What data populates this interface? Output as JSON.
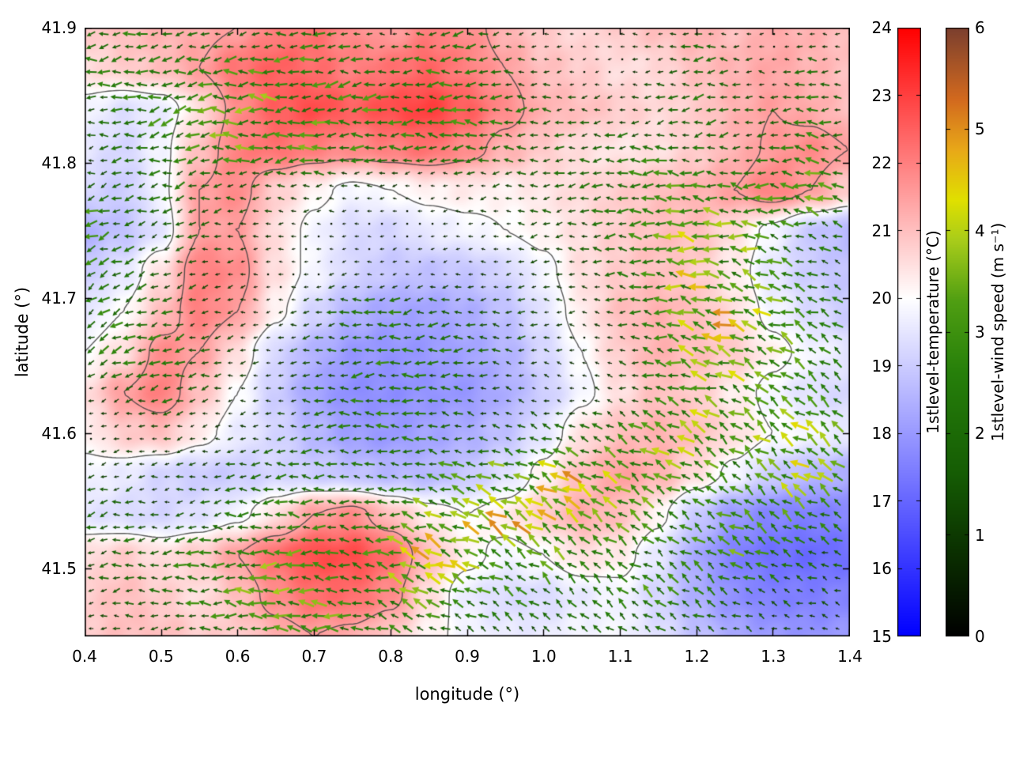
{
  "figure": {
    "background": "#ffffff"
  },
  "chart_data": {
    "type": "heatmap",
    "overlays": [
      "quiver",
      "contour"
    ],
    "title": "",
    "xlabel": "longitude (°)",
    "ylabel": "latitude (°)",
    "xlim": [
      0.4,
      1.4
    ],
    "ylim": [
      41.45,
      41.9
    ],
    "x_ticks": {
      "values": [
        0.4,
        0.5,
        0.6,
        0.7,
        0.8,
        0.9,
        1.0,
        1.1,
        1.2,
        1.3,
        1.4
      ],
      "labels": [
        "0.4",
        "0.5",
        "0.6",
        "0.7",
        "0.8",
        "0.9",
        "1.0",
        "1.1",
        "1.2",
        "1.3",
        "1.4"
      ]
    },
    "y_ticks": {
      "values": [
        41.5,
        41.6,
        41.7,
        41.8,
        41.9
      ],
      "labels": [
        "41.5",
        "41.6",
        "41.7",
        "41.8",
        "41.9"
      ]
    },
    "grid": false,
    "contour_levels": [
      20,
      21.5
    ],
    "contour_color": "#3f3f3f",
    "temperature": {
      "label": "1stlevel-temperature (°C)",
      "range": [
        15,
        24
      ],
      "ticks": [
        15,
        16,
        17,
        18,
        19,
        20,
        21,
        22,
        23,
        24
      ],
      "tick_labels_top_to_bottom": [
        "24",
        "23",
        "22",
        "21",
        "20",
        "19",
        "18",
        "17",
        "16",
        "15"
      ],
      "colormap": [
        {
          "v": 15,
          "c": "#0000ff"
        },
        {
          "v": 20,
          "c": "#ffffff"
        },
        {
          "v": 24,
          "c": "#ff0000"
        }
      ],
      "grid_lon": {
        "start": 0.4,
        "step": 0.05,
        "n": 21
      },
      "grid_lat": {
        "start": 41.9,
        "step": -0.03,
        "n": 16
      },
      "values": [
        [
          20.8,
          21.0,
          21.2,
          21.3,
          21.5,
          22.0,
          22.2,
          21.8,
          21.5,
          22.0,
          21.8,
          21.2,
          20.8,
          20.6,
          20.8,
          21.0,
          21.2,
          21.0,
          21.3,
          21.2,
          21.0
        ],
        [
          20.5,
          20.8,
          21.0,
          21.5,
          22.2,
          22.5,
          22.3,
          22.0,
          22.2,
          22.4,
          22.0,
          21.5,
          21.0,
          20.8,
          20.5,
          20.6,
          21.0,
          21.2,
          21.4,
          21.2,
          21.0
        ],
        [
          19.8,
          19.4,
          19.6,
          20.5,
          21.8,
          22.5,
          22.8,
          22.5,
          22.8,
          23.0,
          22.5,
          21.8,
          21.2,
          21.0,
          20.8,
          20.6,
          20.8,
          21.2,
          21.5,
          21.3,
          21.0
        ],
        [
          19.5,
          19.2,
          19.8,
          21.0,
          22.0,
          22.2,
          22.0,
          21.8,
          22.0,
          22.2,
          21.8,
          21.2,
          20.8,
          20.5,
          20.4,
          20.5,
          20.8,
          21.2,
          21.6,
          21.8,
          21.5
        ],
        [
          19.2,
          19.0,
          19.8,
          21.5,
          21.8,
          20.8,
          20.2,
          19.8,
          20.0,
          20.2,
          20.3,
          20.2,
          20.4,
          20.6,
          20.8,
          21.0,
          21.2,
          21.5,
          22.0,
          21.5,
          20.8
        ],
        [
          18.5,
          18.8,
          19.5,
          21.5,
          21.5,
          20.5,
          19.8,
          19.3,
          19.2,
          19.6,
          19.8,
          20.0,
          20.2,
          20.5,
          20.8,
          21.0,
          21.0,
          20.5,
          19.8,
          18.9,
          18.6
        ],
        [
          19.0,
          19.5,
          20.5,
          22.0,
          21.8,
          20.5,
          19.8,
          19.2,
          18.9,
          18.8,
          18.9,
          19.2,
          19.8,
          20.5,
          20.8,
          21.0,
          20.8,
          20.3,
          19.5,
          19.0,
          18.8
        ],
        [
          19.5,
          20.0,
          21.0,
          22.0,
          21.5,
          20.2,
          19.2,
          18.5,
          18.2,
          18.2,
          18.4,
          18.8,
          19.5,
          20.3,
          21.0,
          21.2,
          21.0,
          20.5,
          19.8,
          19.3,
          19.0
        ],
        [
          20.0,
          20.5,
          21.8,
          21.5,
          20.5,
          19.2,
          18.5,
          18.0,
          17.9,
          18.0,
          18.2,
          18.5,
          19.2,
          20.0,
          20.8,
          21.2,
          21.0,
          20.8,
          20.2,
          19.8,
          19.5
        ],
        [
          20.5,
          21.5,
          22.0,
          21.0,
          20.0,
          19.0,
          18.2,
          17.8,
          17.8,
          17.9,
          18.0,
          18.4,
          19.0,
          19.8,
          20.5,
          21.0,
          20.8,
          20.3,
          19.8,
          19.4,
          19.2
        ],
        [
          20.2,
          20.8,
          21.0,
          20.3,
          19.6,
          19.2,
          18.6,
          18.1,
          18.0,
          18.2,
          18.4,
          18.8,
          19.5,
          20.5,
          21.0,
          21.2,
          21.0,
          20.5,
          20.0,
          19.8,
          19.6
        ],
        [
          19.8,
          19.6,
          19.2,
          19.0,
          19.0,
          19.2,
          19.0,
          18.8,
          18.6,
          18.6,
          18.9,
          19.4,
          20.2,
          21.0,
          21.5,
          21.2,
          20.5,
          19.8,
          19.0,
          18.6,
          18.4
        ],
        [
          19.5,
          19.3,
          19.2,
          19.4,
          19.8,
          20.5,
          21.5,
          21.8,
          21.0,
          20.3,
          20.0,
          20.3,
          20.8,
          21.3,
          21.0,
          20.2,
          19.0,
          18.0,
          17.6,
          17.5,
          17.6
        ],
        [
          20.5,
          20.8,
          20.5,
          20.8,
          21.5,
          22.3,
          22.8,
          22.8,
          22.3,
          21.0,
          20.2,
          19.8,
          20.0,
          20.5,
          20.3,
          19.5,
          18.3,
          17.5,
          17.2,
          17.1,
          17.2
        ],
        [
          20.8,
          21.0,
          20.8,
          20.5,
          21.0,
          21.8,
          22.3,
          22.3,
          21.8,
          20.5,
          19.6,
          19.3,
          19.3,
          19.6,
          19.8,
          19.2,
          18.4,
          17.8,
          17.5,
          17.5,
          17.6
        ],
        [
          20.8,
          21.0,
          21.0,
          20.8,
          20.8,
          21.2,
          21.5,
          21.3,
          20.8,
          20.2,
          19.8,
          19.6,
          19.6,
          19.8,
          19.8,
          19.4,
          18.8,
          18.3,
          18.0,
          17.9,
          18.0
        ]
      ]
    },
    "wind": {
      "label": "1stlevel-wind speed (m s⁻¹)",
      "range": [
        0,
        6
      ],
      "ticks": [
        0,
        1,
        2,
        3,
        4,
        5,
        6
      ],
      "tick_labels_top_to_bottom": [
        "6",
        "5",
        "4",
        "3",
        "2",
        "1",
        "0"
      ],
      "colormap": [
        {
          "v": 0.0,
          "c": "#000000"
        },
        {
          "v": 0.8,
          "c": "#0a2e00"
        },
        {
          "v": 1.6,
          "c": "#155c04"
        },
        {
          "v": 2.6,
          "c": "#267f0a"
        },
        {
          "v": 3.3,
          "c": "#4f9e12"
        },
        {
          "v": 3.9,
          "c": "#a8cc1a"
        },
        {
          "v": 4.3,
          "c": "#e0e000"
        },
        {
          "v": 4.8,
          "c": "#e8a818"
        },
        {
          "v": 5.3,
          "c": "#d2691e"
        },
        {
          "v": 6.0,
          "c": "#7b3f2e"
        }
      ],
      "grid_lon": {
        "start": 0.4,
        "step": 0.05,
        "n": 21
      },
      "grid_lat": {
        "start": 41.9,
        "step": -0.03,
        "n": 16
      },
      "speed": [
        [
          1.8,
          2.2,
          2.0,
          1.5,
          1.2,
          1.8,
          2.2,
          1.5,
          0.8,
          1.5,
          1.8,
          1.2,
          0.6,
          0.4,
          0.5,
          0.8,
          1.5,
          0.6,
          0.4,
          0.8,
          0.5
        ],
        [
          2.0,
          2.5,
          2.2,
          2.0,
          2.5,
          2.8,
          2.5,
          2.2,
          1.8,
          2.2,
          2.0,
          1.5,
          0.8,
          0.5,
          0.6,
          1.0,
          1.8,
          1.2,
          0.8,
          1.8,
          0.6
        ],
        [
          1.5,
          2.0,
          2.5,
          2.8,
          3.0,
          2.8,
          2.5,
          2.8,
          2.5,
          2.2,
          2.5,
          2.0,
          1.5,
          1.2,
          0.8,
          1.5,
          2.0,
          1.5,
          1.2,
          2.2,
          1.0
        ],
        [
          1.2,
          1.8,
          2.2,
          2.5,
          2.8,
          2.5,
          2.8,
          2.5,
          2.2,
          2.0,
          2.2,
          1.8,
          1.5,
          1.8,
          2.0,
          2.2,
          1.8,
          1.5,
          2.0,
          2.5,
          1.5
        ],
        [
          2.2,
          1.5,
          1.8,
          2.0,
          1.5,
          1.2,
          1.0,
          0.8,
          0.6,
          0.5,
          0.8,
          1.2,
          1.5,
          1.8,
          2.0,
          2.5,
          2.8,
          2.2,
          2.5,
          2.8,
          2.0
        ],
        [
          2.5,
          1.8,
          1.2,
          1.5,
          1.0,
          0.8,
          0.6,
          0.5,
          0.4,
          0.5,
          0.6,
          0.8,
          1.2,
          1.5,
          2.0,
          2.8,
          3.2,
          3.0,
          2.5,
          2.2,
          1.8
        ],
        [
          2.2,
          2.0,
          1.5,
          1.2,
          0.8,
          0.6,
          0.5,
          0.8,
          0.6,
          0.5,
          0.6,
          0.8,
          1.0,
          1.2,
          1.8,
          2.8,
          3.5,
          3.2,
          2.8,
          2.0,
          1.5
        ],
        [
          2.0,
          2.2,
          1.8,
          1.0,
          0.8,
          0.6,
          1.2,
          1.8,
          2.0,
          1.8,
          1.5,
          1.2,
          1.0,
          0.8,
          1.5,
          2.5,
          3.5,
          3.8,
          3.0,
          2.2,
          1.8
        ],
        [
          1.8,
          2.5,
          2.2,
          1.5,
          1.0,
          0.8,
          1.5,
          2.0,
          2.2,
          2.0,
          1.8,
          1.5,
          1.0,
          0.6,
          1.2,
          2.2,
          3.2,
          3.5,
          2.8,
          2.5,
          2.0
        ],
        [
          0.8,
          1.2,
          1.8,
          1.2,
          0.8,
          0.8,
          1.5,
          2.0,
          2.0,
          1.8,
          1.5,
          1.0,
          0.6,
          0.5,
          1.0,
          2.0,
          3.0,
          3.0,
          2.5,
          2.8,
          2.2
        ],
        [
          0.6,
          0.8,
          1.0,
          0.8,
          0.8,
          1.2,
          1.8,
          2.2,
          2.0,
          1.8,
          1.5,
          1.2,
          1.5,
          2.0,
          2.5,
          3.0,
          3.5,
          2.8,
          3.0,
          3.2,
          2.5
        ],
        [
          1.0,
          1.0,
          1.0,
          1.2,
          1.5,
          1.8,
          2.0,
          1.8,
          1.8,
          2.2,
          2.8,
          3.2,
          3.5,
          3.8,
          3.5,
          3.0,
          2.5,
          2.2,
          2.8,
          3.5,
          2.8
        ],
        [
          1.8,
          1.5,
          1.2,
          1.5,
          2.0,
          2.2,
          2.0,
          1.8,
          2.2,
          3.0,
          3.8,
          4.0,
          3.8,
          3.2,
          2.8,
          2.5,
          2.0,
          2.5,
          3.0,
          2.8,
          2.2
        ],
        [
          1.5,
          1.8,
          2.0,
          2.2,
          2.5,
          2.8,
          2.5,
          2.2,
          3.2,
          3.8,
          3.5,
          3.0,
          2.8,
          2.5,
          2.2,
          2.0,
          2.5,
          3.0,
          2.2,
          1.8,
          1.5
        ],
        [
          1.2,
          1.5,
          1.8,
          2.5,
          2.8,
          3.0,
          2.8,
          2.5,
          2.8,
          3.0,
          2.5,
          2.2,
          2.0,
          1.8,
          2.2,
          2.5,
          2.0,
          1.8,
          1.5,
          1.2,
          1.0
        ],
        [
          0.8,
          1.0,
          1.2,
          1.8,
          2.2,
          2.5,
          2.8,
          2.5,
          2.2,
          2.0,
          1.8,
          1.5,
          1.2,
          1.5,
          1.8,
          2.0,
          1.5,
          1.2,
          1.0,
          0.8,
          0.6
        ]
      ],
      "dir_lon": {
        "start": 0.4,
        "step": 0.1,
        "n": 11
      },
      "dir_lat": {
        "start": 41.9,
        "step": -0.06429,
        "n": 8
      },
      "direction_deg": [
        [
          190,
          195,
          185,
          180,
          175,
          185,
          190,
          185,
          180,
          175,
          180
        ],
        [
          185,
          190,
          180,
          185,
          180,
          175,
          180,
          185,
          190,
          180,
          175
        ],
        [
          200,
          195,
          185,
          180,
          185,
          190,
          185,
          180,
          175,
          170,
          165
        ],
        [
          210,
          200,
          190,
          185,
          190,
          185,
          180,
          175,
          165,
          160,
          155
        ],
        [
          205,
          195,
          190,
          185,
          180,
          175,
          170,
          165,
          160,
          150,
          145
        ],
        [
          195,
          190,
          185,
          180,
          175,
          165,
          155,
          150,
          145,
          140,
          150
        ],
        [
          190,
          185,
          180,
          175,
          165,
          155,
          145,
          140,
          145,
          150,
          155
        ],
        [
          185,
          180,
          175,
          170,
          160,
          150,
          140,
          145,
          150,
          155,
          160
        ]
      ]
    }
  }
}
